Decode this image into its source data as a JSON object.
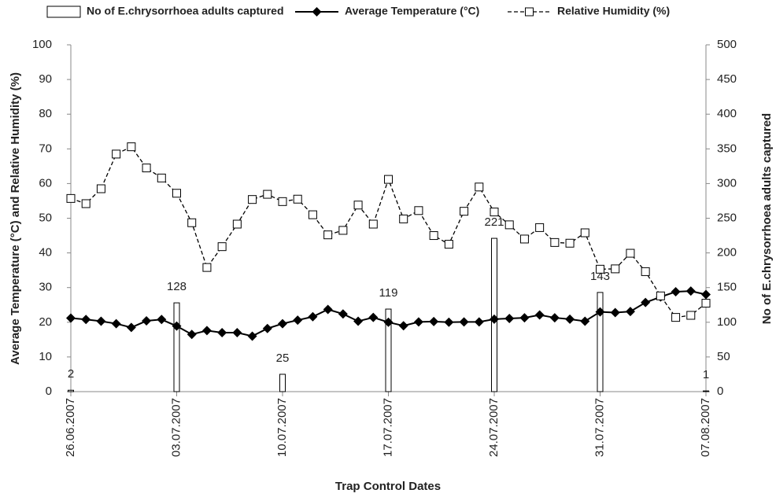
{
  "chart_data": {
    "type": "combo",
    "xlabel": "Trap Control Dates",
    "ylabel": "Average Temperature (°C) and Relative Humidity (%)",
    "y2label": "No of E.chrysorrhoea adults captured",
    "categories": [
      "26.06.2007",
      null,
      null,
      null,
      null,
      null,
      null,
      "03.07.2007",
      null,
      null,
      null,
      null,
      null,
      null,
      "10.07.2007",
      null,
      null,
      null,
      null,
      null,
      null,
      "17.07.2007",
      null,
      null,
      null,
      null,
      null,
      null,
      "24.07.2007",
      null,
      null,
      null,
      null,
      null,
      null,
      "31.07.2007",
      null,
      null,
      null,
      null,
      null,
      null,
      "07.08.2007"
    ],
    "ylim": [
      0,
      100
    ],
    "yticks": [
      0,
      10,
      20,
      30,
      40,
      50,
      60,
      70,
      80,
      90,
      100
    ],
    "y2lim": [
      0,
      500
    ],
    "y2ticks": [
      0,
      50,
      100,
      150,
      200,
      250,
      300,
      350,
      400,
      450,
      500
    ],
    "grid": false,
    "legend": "top",
    "series": [
      {
        "name": "No of E.chrysorrhoea adults captured",
        "type": "bar",
        "axis": "y2",
        "color": "#ffffff",
        "edge_color": "#000000",
        "values": [
          2,
          null,
          null,
          null,
          null,
          null,
          null,
          128,
          null,
          null,
          null,
          null,
          null,
          null,
          25,
          null,
          null,
          null,
          null,
          null,
          null,
          119,
          null,
          null,
          null,
          null,
          null,
          null,
          221,
          null,
          null,
          null,
          null,
          null,
          null,
          143,
          null,
          null,
          null,
          null,
          null,
          null,
          1
        ]
      },
      {
        "name": "Average Temperature (°C)",
        "type": "line",
        "color": "#000000",
        "line_style": "solid",
        "marker": "diamond",
        "values": [
          21.2,
          20.8,
          20.3,
          19.6,
          18.5,
          20.4,
          20.8,
          18.9,
          16.5,
          17.6,
          17,
          17,
          16,
          18.2,
          19.6,
          20.6,
          21.6,
          23.7,
          22.4,
          20.3,
          21.4,
          20,
          19,
          20.1,
          20.2,
          20,
          20.1,
          20.1,
          20.9,
          21.1,
          21.3,
          22.1,
          21.3,
          20.9,
          20.3,
          23,
          22.8,
          23.1,
          25.7,
          27.3,
          28.8,
          29,
          28
        ]
      },
      {
        "name": "Relative Humidity (%)",
        "type": "line",
        "color": "#000000",
        "line_style": "dashed",
        "marker": "square",
        "values": [
          55.7,
          54.2,
          58.5,
          68.5,
          70.6,
          64.5,
          61.6,
          57.2,
          48.7,
          35.8,
          41.8,
          48.3,
          55.4,
          56.9,
          54.8,
          55.5,
          51,
          45.2,
          46.5,
          53.8,
          48.3,
          61.2,
          49.8,
          52.2,
          45,
          42.5,
          52,
          59,
          51.8,
          48.1,
          44,
          47.3,
          43,
          42.8,
          45.8,
          35.3,
          35.4,
          39.9,
          34.6,
          27.6,
          21.4,
          22,
          25.5
        ]
      }
    ]
  }
}
